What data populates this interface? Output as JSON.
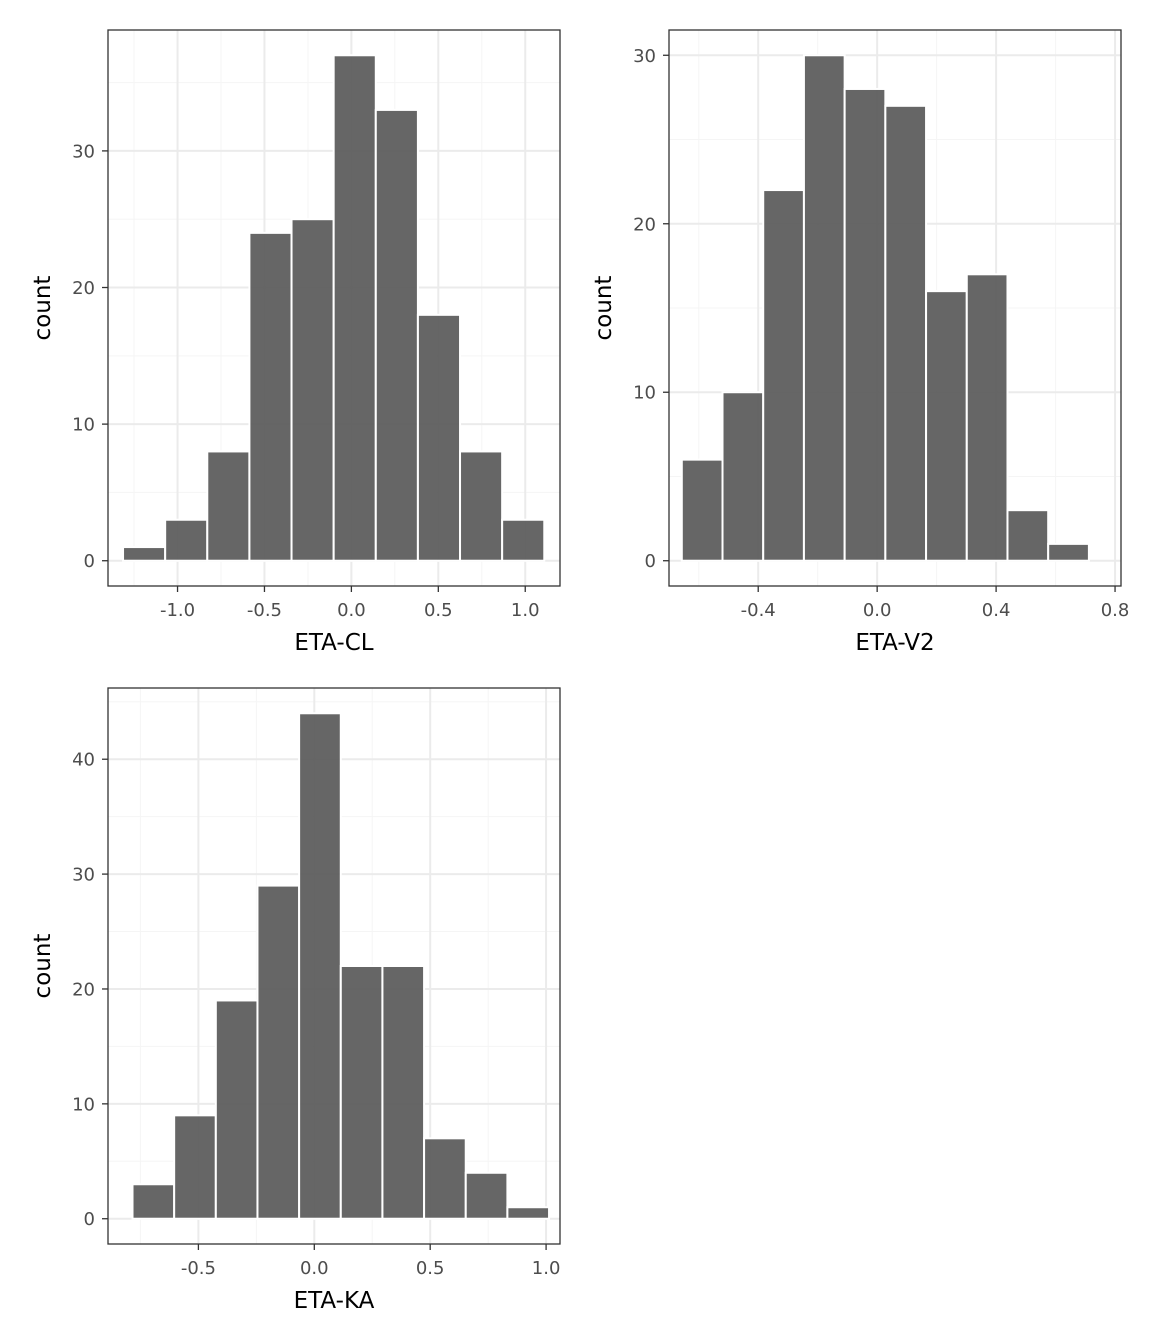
{
  "colors": {
    "bar_fill": "#595959",
    "bar_stroke": "#ffffff",
    "panel_border": "#333333",
    "grid_major": "#ebebeb",
    "grid_minor": "#f5f5f5",
    "tick_text": "#4d4d4d"
  },
  "chart_data": [
    {
      "id": "eta-cl",
      "type": "bar",
      "title": "",
      "xlabel": "ETA-CL",
      "ylabel": "count",
      "bin_width": 0.2423,
      "bin_centers": [
        -1.1923,
        -0.95,
        -0.7077,
        -0.4654,
        -0.2231,
        0.0192,
        0.2615,
        0.5038,
        0.7461,
        0.9884
      ],
      "values": [
        1,
        3,
        8,
        24,
        25,
        37,
        33,
        18,
        8,
        3
      ],
      "xlim": [
        -1.4,
        1.2
      ],
      "ylim": [
        -1.85,
        38.85
      ],
      "xticks": [
        -1.0,
        -0.5,
        0.0,
        0.5,
        1.0
      ],
      "xtick_labels": [
        "-1.0",
        "-0.5",
        "0.0",
        "0.5",
        "1.0"
      ],
      "yticks": [
        0,
        10,
        20,
        30
      ],
      "ytick_labels": [
        "0",
        "10",
        "20",
        "30"
      ],
      "grid": true
    },
    {
      "id": "eta-v2",
      "type": "bar",
      "title": "",
      "xlabel": "ETA-V2",
      "ylabel": "count",
      "bin_width": 0.1369,
      "bin_centers": [
        -0.5885,
        -0.4516,
        -0.3147,
        -0.1778,
        -0.0409,
        0.096,
        0.2329,
        0.3698,
        0.5067,
        0.6436
      ],
      "values": [
        6,
        10,
        22,
        30,
        28,
        27,
        16,
        17,
        3,
        1
      ],
      "xlim": [
        -0.7,
        0.82
      ],
      "ylim": [
        -1.5,
        31.5
      ],
      "xticks": [
        -0.4,
        0.0,
        0.4,
        0.8
      ],
      "xtick_labels": [
        "-0.4",
        "0.0",
        "0.4",
        "0.8"
      ],
      "yticks": [
        0,
        10,
        20,
        30
      ],
      "ytick_labels": [
        "0",
        "10",
        "20",
        "30"
      ],
      "grid": true
    },
    {
      "id": "eta-ka",
      "type": "bar",
      "title": "",
      "xlabel": "ETA-KA",
      "ylabel": "count",
      "bin_width": 0.1797,
      "bin_centers": [
        -0.6944,
        -0.5147,
        -0.335,
        -0.1553,
        0.0244,
        0.2041,
        0.3838,
        0.5635,
        0.7432,
        0.9229
      ],
      "values": [
        3,
        9,
        19,
        29,
        44,
        22,
        22,
        7,
        4,
        1
      ],
      "xlim": [
        -0.89,
        1.06
      ],
      "ylim": [
        -2.2,
        46.2
      ],
      "xticks": [
        -0.5,
        0.0,
        0.5,
        1.0
      ],
      "xtick_labels": [
        "-0.5",
        "0.0",
        "0.5",
        "1.0"
      ],
      "yticks": [
        0,
        10,
        20,
        30,
        40
      ],
      "ytick_labels": [
        "0",
        "10",
        "20",
        "30",
        "40"
      ],
      "grid": true
    }
  ]
}
